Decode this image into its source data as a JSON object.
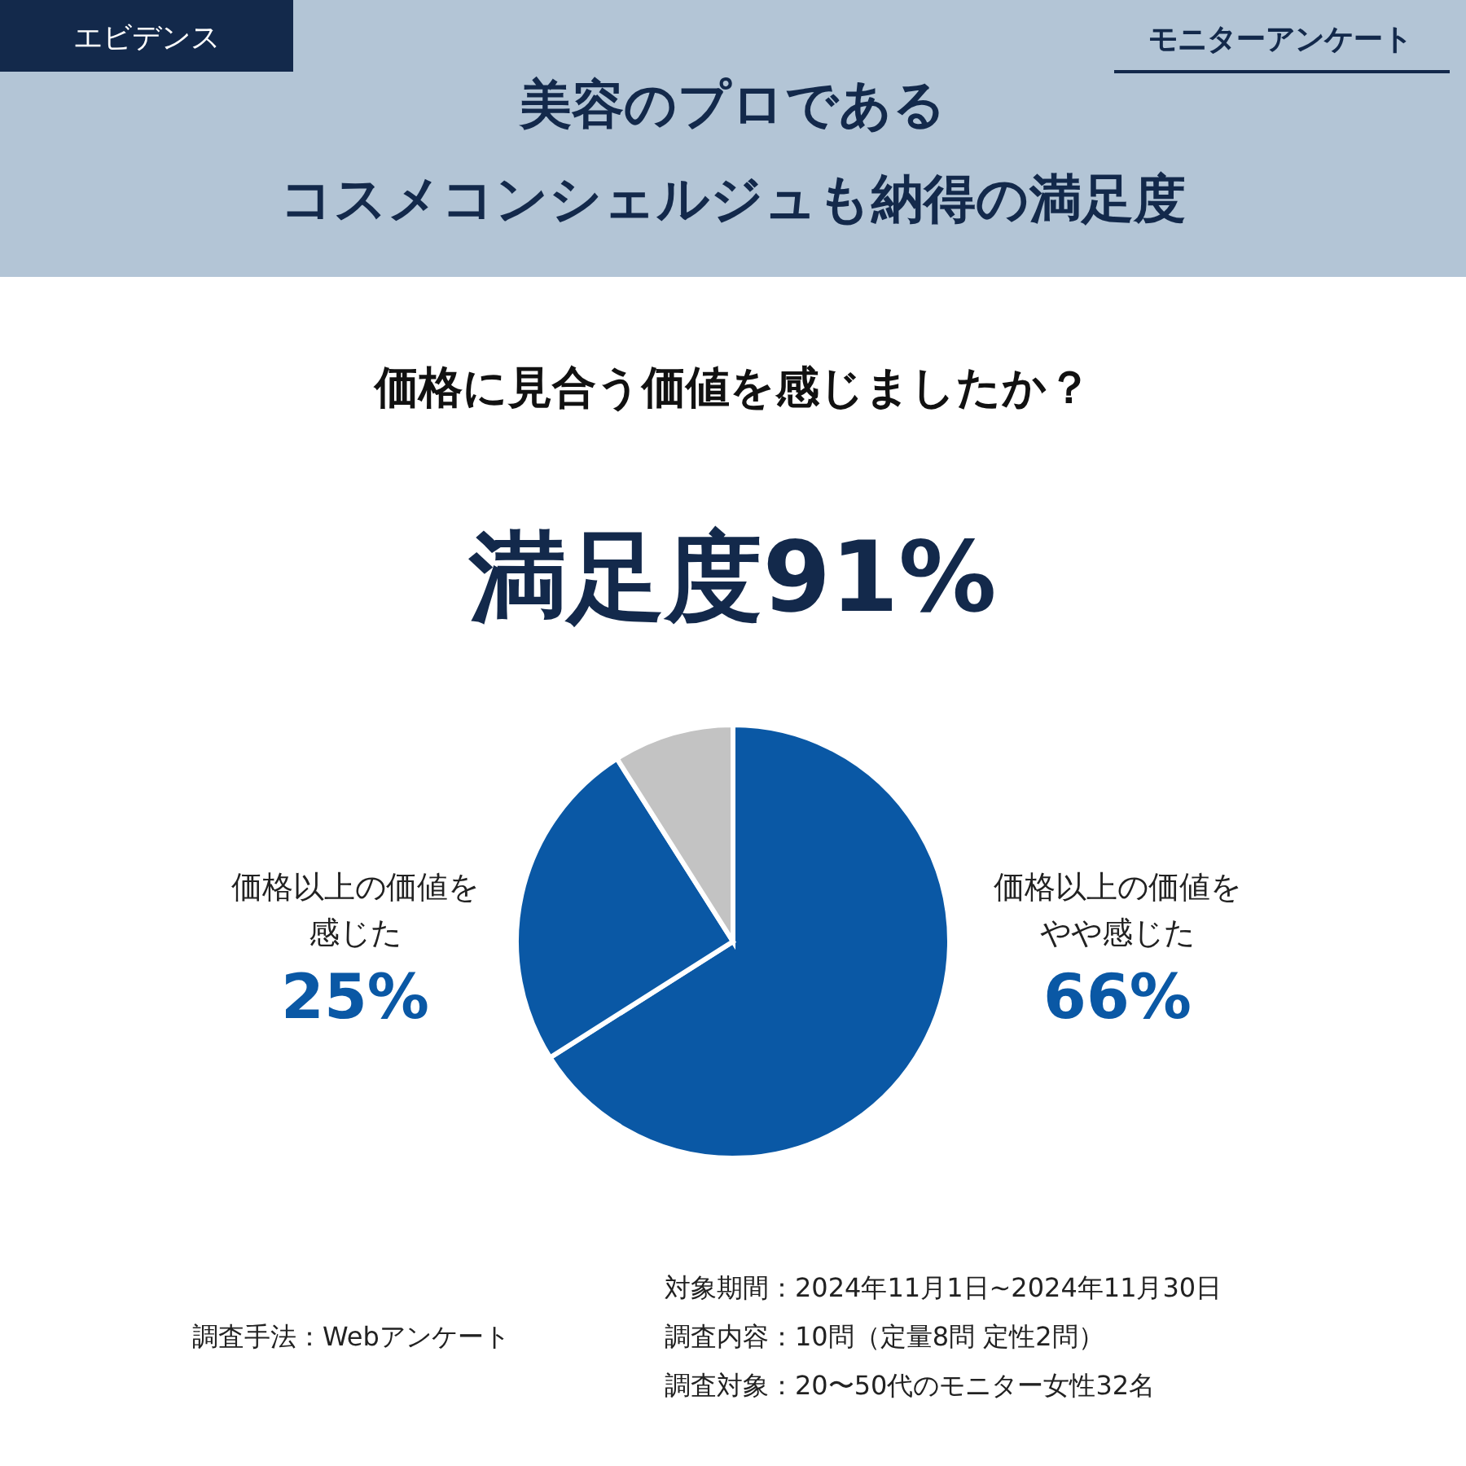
{
  "chart_data": {
    "type": "pie",
    "title": "美容のプロであるコスメコンシェルジュも納得の満足度",
    "subtitle": "価格に見合う価値を感じましたか？",
    "categories": [
      "価格以上の価値をやや感じた",
      "価格以上の価値を感じた",
      null
    ],
    "values": [
      66,
      25,
      9
    ],
    "colors": [
      "#0a58a5",
      "#0a58a5",
      "#c3c3c3"
    ],
    "value_labels": [
      "66%",
      "25%",
      null
    ],
    "annotations": [
      "エビデンス",
      "モニターアンケート",
      "満足度91%",
      "調査手法：Webアンケート",
      "対象期間：2024年11月1日~2024年11月30日",
      "調査内容：10問（定量8問 定性2問）",
      "調査対象：20〜50代のモニター女性32名"
    ]
  }
}
